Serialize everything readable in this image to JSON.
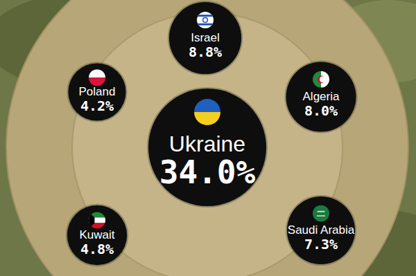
{
  "chart_data": {
    "type": "bubble",
    "categories": [
      "Ukraine",
      "Israel",
      "Algeria",
      "Poland",
      "Kuwait",
      "Saudi Arabia"
    ],
    "values": [
      34.0,
      8.8,
      8.0,
      4.2,
      4.8,
      7.3
    ],
    "value_labels": [
      "34.0%",
      "8.8%",
      "8.0%",
      "4.2%",
      "4.8%",
      "7.3%"
    ],
    "tick_labels": false,
    "data_labels": true
  }
}
